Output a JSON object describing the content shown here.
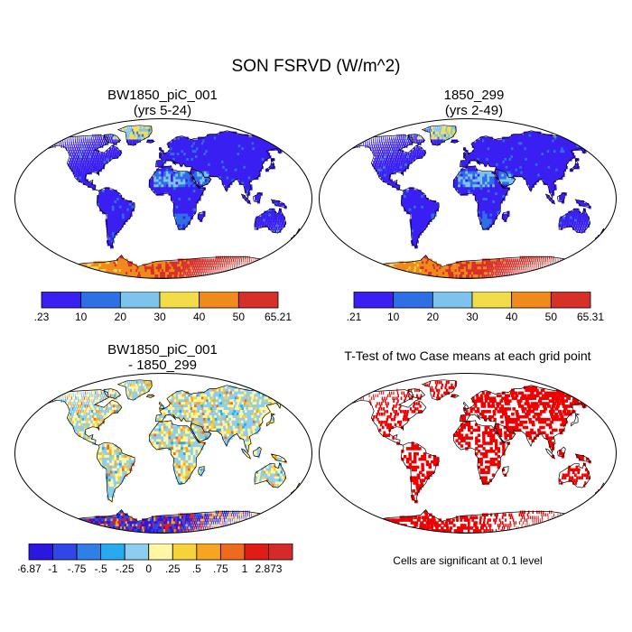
{
  "title": "SON FSRVD (W/m^2)",
  "panels": [
    {
      "title_line1": "BW1850_piC_001",
      "title_line2": "(yrs 5-24)",
      "colorbar": {
        "labels": [
          ".23",
          "10",
          "20",
          "30",
          "40",
          "50",
          "65.21"
        ],
        "colors": [
          "#3a1ff2",
          "#2f6fe6",
          "#7ec3eb",
          "#f3dc4a",
          "#f08a1c",
          "#d73028"
        ]
      }
    },
    {
      "title_line1": "1850_299",
      "title_line2": "(yrs 2-49)",
      "colorbar": {
        "labels": [
          ".21",
          "10",
          "20",
          "30",
          "40",
          "50",
          "65.31"
        ],
        "colors": [
          "#3a1ff2",
          "#2f6fe6",
          "#7ec3eb",
          "#f3dc4a",
          "#f08a1c",
          "#d73028"
        ]
      }
    },
    {
      "title_line1": "BW1850_piC_001",
      "title_line2": "- 1850_299",
      "colorbar": {
        "labels": [
          "-6.87",
          "-1",
          "-.75",
          "-.5",
          "-.25",
          "0",
          ".25",
          ".5",
          ".75",
          "1",
          "2.873"
        ],
        "colors": [
          "#2a18e0",
          "#3146e8",
          "#2f7fe6",
          "#29a9ef",
          "#8fcdef",
          "#fff7a6",
          "#f7d23a",
          "#f5a51f",
          "#ee6a1c",
          "#e01c16",
          "#d62a2a"
        ]
      }
    },
    {
      "title_line1": "T-Test of two Case means at each grid point",
      "note": "Cells are significant at 0.1 level",
      "significance_color": "#ee0000"
    }
  ]
}
